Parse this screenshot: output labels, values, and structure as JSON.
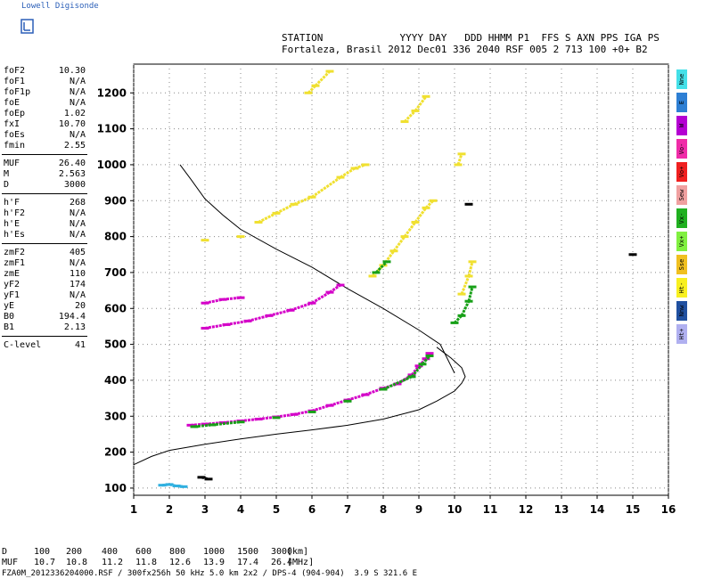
{
  "logo": "Lowell Digisonde",
  "header": {
    "line1": "STATION             YYYY DAY   DDD HHMM P1  FFS S AXN PPS IGA PS",
    "line2": "Fortaleza, Brasil 2012 Dec01 336 2040 RSF 005 2 713 100 +0+ B2"
  },
  "params": [
    {
      "name": "foF2",
      "value": "10.30"
    },
    {
      "name": "foF1",
      "value": "N/A"
    },
    {
      "name": "foF1p",
      "value": "N/A"
    },
    {
      "name": "foE",
      "value": "N/A"
    },
    {
      "name": "foEp",
      "value": "1.02"
    },
    {
      "name": "fxI",
      "value": "10.70"
    },
    {
      "name": "foEs",
      "value": "N/A"
    },
    {
      "name": "fmin",
      "value": "2.55"
    },
    {
      "name": "MUF",
      "value": "26.40"
    },
    {
      "name": "M",
      "value": "2.563"
    },
    {
      "name": "D",
      "value": "3000"
    },
    {
      "name": "h'F",
      "value": "268"
    },
    {
      "name": "h'F2",
      "value": "N/A"
    },
    {
      "name": "h'E",
      "value": "N/A"
    },
    {
      "name": "h'Es",
      "value": "N/A"
    },
    {
      "name": "zmF2",
      "value": "405"
    },
    {
      "name": "zmF1",
      "value": "N/A"
    },
    {
      "name": "zmE",
      "value": "110"
    },
    {
      "name": "yF2",
      "value": "174"
    },
    {
      "name": "yF1",
      "value": "N/A"
    },
    {
      "name": "yE",
      "value": "20"
    },
    {
      "name": "B0",
      "value": "194.4"
    },
    {
      "name": "B1",
      "value": "2.13"
    },
    {
      "name": "C-level",
      "value": "41"
    }
  ],
  "legend": [
    {
      "label": "Nne",
      "color": "#44e0e8"
    },
    {
      "label": "E",
      "color": "#2e7fd4"
    },
    {
      "label": "W",
      "color": "#b400d2"
    },
    {
      "label": "Vo-",
      "color": "#f02ca8"
    },
    {
      "label": "Vo+",
      "color": "#f02020"
    },
    {
      "label": "Sew",
      "color": "#f0a0a0"
    },
    {
      "label": "Vx-",
      "color": "#20b020"
    },
    {
      "label": "Vx+",
      "color": "#80f040"
    },
    {
      "label": "Sse",
      "color": "#f0c020"
    },
    {
      "label": "Ht-",
      "color": "#f8f020"
    },
    {
      "label": "Nnw",
      "color": "#2050a0"
    },
    {
      "label": "Ht+",
      "color": "#b0b0f0"
    }
  ],
  "muf_table": {
    "d_label": "D",
    "muf_label": "MUF",
    "distances": [
      "100",
      "200",
      "400",
      "600",
      "800",
      "1000",
      "1500",
      "3000"
    ],
    "mufs": [
      "10.7",
      "10.8",
      "11.2",
      "11.8",
      "12.6",
      "13.9",
      "17.4",
      "26.4"
    ],
    "d_unit": "[km]",
    "muf_unit": "[MHz]"
  },
  "footer": "FZA0M_2012336204000.RSF / 300fx256h 50 kHz 5.0 km 2x2 / DPS-4 (904-904)  3.9 S 321.6 E",
  "chart_data": {
    "type": "scatter",
    "xlim": [
      1,
      16
    ],
    "ylim": [
      80,
      1280
    ],
    "x_ticks": [
      "1",
      "2",
      "3",
      "4",
      "5",
      "6",
      "7",
      "8",
      "9",
      "10",
      "11",
      "12",
      "13",
      "14",
      "15",
      "16"
    ],
    "y_ticks": [
      "100",
      "200",
      "300",
      "400",
      "500",
      "600",
      "700",
      "800",
      "900",
      "1000",
      "1100",
      "1200"
    ],
    "grid": true,
    "series": [
      {
        "color": "#d400c8",
        "points": [
          [
            2.6,
            275
          ],
          [
            3.0,
            278
          ],
          [
            3.5,
            282
          ],
          [
            4.0,
            287
          ],
          [
            4.5,
            292
          ],
          [
            5.0,
            298
          ],
          [
            5.5,
            305
          ],
          [
            6.0,
            315
          ],
          [
            6.5,
            330
          ],
          [
            7.0,
            345
          ],
          [
            7.5,
            360
          ],
          [
            8.0,
            378
          ],
          [
            8.4,
            390
          ],
          [
            8.8,
            415
          ],
          [
            9.0,
            440
          ],
          [
            9.2,
            460
          ],
          [
            9.3,
            475
          ]
        ]
      },
      {
        "color": "#18a018",
        "points": [
          [
            2.7,
            271
          ],
          [
            3.2,
            276
          ],
          [
            4.0,
            284
          ],
          [
            5.0,
            296
          ],
          [
            6.0,
            312
          ],
          [
            7.0,
            342
          ],
          [
            8.0,
            375
          ],
          [
            8.8,
            410
          ],
          [
            9.1,
            445
          ],
          [
            9.3,
            468
          ]
        ]
      },
      {
        "color": "#d400c8",
        "points": [
          [
            3.0,
            615
          ],
          [
            3.5,
            625
          ],
          [
            4.0,
            630
          ],
          [
            3.0,
            545
          ],
          [
            3.6,
            555
          ],
          [
            4.2,
            565
          ],
          [
            4.8,
            580
          ],
          [
            5.4,
            595
          ],
          [
            6.0,
            615
          ],
          [
            6.5,
            645
          ],
          [
            6.8,
            665
          ]
        ]
      },
      {
        "color": "#f0e030",
        "points": [
          [
            7.7,
            690
          ],
          [
            8.0,
            720
          ],
          [
            8.3,
            760
          ],
          [
            8.6,
            800
          ],
          [
            8.9,
            840
          ],
          [
            9.2,
            880
          ],
          [
            9.4,
            900
          ],
          [
            10.2,
            640
          ],
          [
            10.4,
            690
          ],
          [
            10.5,
            730
          ]
        ]
      },
      {
        "color": "#f0e030",
        "points": [
          [
            4.5,
            840
          ],
          [
            5.0,
            865
          ],
          [
            5.5,
            890
          ],
          [
            6.0,
            910
          ],
          [
            6.8,
            965
          ],
          [
            7.2,
            990
          ],
          [
            7.5,
            1000
          ],
          [
            8.6,
            1120
          ],
          [
            8.9,
            1150
          ],
          [
            9.2,
            1190
          ],
          [
            10.1,
            1000
          ],
          [
            10.2,
            1030
          ],
          [
            5.9,
            1200
          ],
          [
            6.1,
            1220
          ],
          [
            6.5,
            1260
          ],
          [
            4.0,
            800
          ],
          [
            3.0,
            790
          ]
        ]
      },
      {
        "color": "#18a018",
        "points": [
          [
            10.0,
            560
          ],
          [
            10.2,
            580
          ],
          [
            10.4,
            620
          ],
          [
            10.5,
            660
          ],
          [
            7.8,
            700
          ],
          [
            8.1,
            730
          ]
        ]
      },
      {
        "color": "#30b0e0",
        "points": [
          [
            1.8,
            108
          ],
          [
            2.0,
            110
          ],
          [
            2.2,
            106
          ],
          [
            2.4,
            104
          ]
        ]
      },
      {
        "color": "#000000",
        "points": [
          [
            2.9,
            130
          ],
          [
            3.1,
            125
          ],
          [
            15.0,
            750
          ],
          [
            10.4,
            890
          ]
        ]
      }
    ],
    "curves": [
      {
        "name": "",
        "color": "#000000",
        "points": [
          [
            1.0,
            165
          ],
          [
            1.5,
            188
          ],
          [
            2.0,
            205
          ],
          [
            3.0,
            222
          ],
          [
            4.0,
            237
          ],
          [
            5.0,
            250
          ],
          [
            6.0,
            262
          ],
          [
            7.0,
            275
          ],
          [
            8.0,
            292
          ],
          [
            9.0,
            318
          ],
          [
            9.5,
            342
          ],
          [
            10.0,
            370
          ],
          [
            10.2,
            392
          ],
          [
            10.3,
            410
          ],
          [
            10.2,
            435
          ],
          [
            9.9,
            462
          ],
          [
            9.5,
            492
          ]
        ]
      },
      {
        "name": "",
        "color": "#000000",
        "points": [
          [
            2.3,
            1000
          ],
          [
            2.6,
            960
          ],
          [
            3.0,
            905
          ],
          [
            3.5,
            860
          ],
          [
            4.0,
            820
          ],
          [
            5.0,
            765
          ],
          [
            6.0,
            715
          ],
          [
            7.0,
            655
          ],
          [
            8.0,
            600
          ],
          [
            9.0,
            540
          ],
          [
            9.6,
            500
          ],
          [
            10.0,
            420
          ]
        ]
      }
    ]
  }
}
